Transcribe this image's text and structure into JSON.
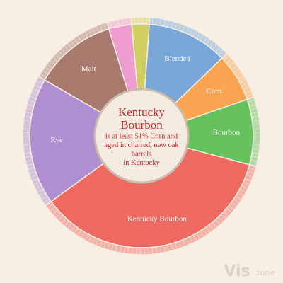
{
  "chart_data": {
    "type": "sunburst",
    "center_title": [
      "Kentucky",
      "Bourbon"
    ],
    "center_text": [
      "is at least 51% Corn and",
      "aged in charred, new oak",
      "barrels",
      "in Kentucky"
    ],
    "categories": [
      "Blended",
      "Corn",
      "Bourbon",
      "Kentucky Bourbon",
      "Rye",
      "Malt",
      null,
      null
    ],
    "values": [
      42,
      25,
      34,
      129,
      66,
      43,
      12,
      9
    ],
    "colors": [
      "#78a7d8",
      "#fba452",
      "#66c25d",
      "#ee6a60",
      "#b08fd0",
      "#a97b6e",
      "#ef9cd0",
      "#cfcf5f"
    ]
  },
  "watermark": [
    "Vis",
    "zone"
  ]
}
